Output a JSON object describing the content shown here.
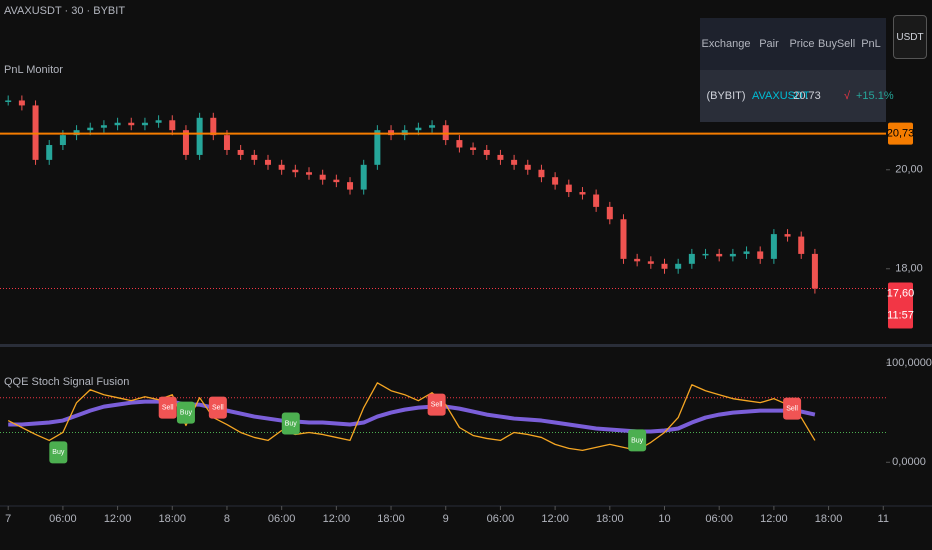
{
  "header": {
    "symbol": "AVAXUSDT · 30 · BYBIT",
    "indicator": "PnL Monitor",
    "currency": "USDT"
  },
  "table": {
    "columns": [
      "Exchange",
      "Pair",
      "Price",
      "Buy",
      "Sell",
      "PnL"
    ],
    "row": {
      "exchange": "(BYBIT)",
      "pair": "AVAXUSDT",
      "price": "20.73",
      "sell": "√",
      "pnl": "+15.1%"
    }
  },
  "chart_data": [
    {
      "type": "candlestick",
      "x": [
        0,
        1.5,
        3,
        4.5,
        6,
        7.5,
        9,
        10.5,
        12,
        13.5,
        15,
        16.5,
        18,
        19.5,
        21,
        22.5,
        24,
        25.5,
        27,
        28.5,
        30,
        31.5,
        33,
        34.5,
        36,
        37.5,
        39,
        40.5,
        42,
        43.5,
        45,
        46.5,
        48,
        49.5,
        51,
        52.5,
        54,
        55.5,
        57,
        58.5,
        60,
        61.5,
        63,
        64.5,
        66,
        67.5,
        69,
        70.5,
        72,
        73.5,
        75,
        76.5,
        78,
        79.5,
        81,
        82.5,
        84,
        85.5,
        87,
        88.5
      ],
      "values": [
        21.4,
        21.3,
        20.2,
        20.5,
        20.7,
        20.8,
        20.85,
        20.9,
        20.95,
        20.9,
        20.95,
        21.0,
        20.8,
        20.3,
        21.05,
        20.7,
        20.4,
        20.3,
        20.2,
        20.1,
        20.0,
        19.95,
        19.9,
        19.8,
        19.75,
        19.6,
        20.1,
        20.8,
        20.7,
        20.8,
        20.85,
        20.9,
        20.6,
        20.45,
        20.4,
        20.3,
        20.2,
        20.1,
        20.0,
        19.85,
        19.7,
        19.55,
        19.5,
        19.25,
        19.0,
        18.2,
        18.15,
        18.1,
        18.0,
        18.1,
        18.3,
        18.3,
        18.25,
        18.3,
        18.35,
        18.2,
        18.7,
        18.65,
        18.3,
        17.6
      ],
      "up_color": "#26a69a",
      "down_color": "#ef5350",
      "xlim": [
        -0.9,
        96.3
      ],
      "ylim": [
        16.5,
        23.43
      ],
      "yticks": [
        {
          "value": 20,
          "label": "20,00"
        },
        {
          "value": 18,
          "label": "18,00"
        }
      ],
      "price_line": {
        "value": 20.73,
        "label": "20,73",
        "color": "#f57c00"
      },
      "last_price": {
        "value": 17.6,
        "label": "17,60",
        "countdown": "11:57",
        "color": "#f23645"
      }
    },
    {
      "type": "line",
      "title": "QQE Stoch Signal Fusion",
      "x": [
        0,
        1.5,
        3,
        4.5,
        6,
        7.5,
        9,
        10.5,
        12,
        13.5,
        15,
        16.5,
        18,
        19.5,
        21,
        22.5,
        24,
        25.5,
        27,
        28.5,
        30,
        31.5,
        33,
        34.5,
        36,
        37.5,
        39,
        40.5,
        42,
        43.5,
        45,
        46.5,
        48,
        49.5,
        51,
        52.5,
        54,
        55.5,
        57,
        58.5,
        60,
        61.5,
        63,
        64.5,
        66,
        67.5,
        69,
        70.5,
        72,
        73.5,
        75,
        76.5,
        78,
        79.5,
        81,
        82.5,
        84,
        85.5,
        87,
        88.5
      ],
      "series": [
        {
          "color": "#7b5fd9",
          "width": 4,
          "values": [
            38,
            38,
            39,
            40,
            42,
            47,
            52,
            56,
            58,
            60,
            61,
            61,
            61,
            58,
            58,
            55,
            52,
            49,
            46,
            44,
            42,
            41,
            40,
            40,
            39,
            38,
            40,
            46,
            50,
            53,
            55,
            56,
            56,
            54,
            51,
            48,
            46,
            44,
            43,
            42,
            40,
            38,
            36,
            34,
            33,
            32,
            31,
            31,
            32,
            34,
            40,
            45,
            48,
            50,
            51,
            52,
            52,
            52,
            51,
            48
          ]
        },
        {
          "color": "#f5a623",
          "width": 1.3,
          "values": [
            42,
            35,
            28,
            22,
            30,
            60,
            73,
            68,
            65,
            62,
            66,
            63,
            68,
            37,
            65,
            45,
            38,
            30,
            25,
            22,
            32,
            28,
            30,
            28,
            25,
            22,
            55,
            80,
            72,
            68,
            62,
            70,
            58,
            35,
            27,
            24,
            22,
            30,
            28,
            25,
            18,
            14,
            12,
            15,
            18,
            15,
            12,
            20,
            30,
            45,
            78,
            72,
            68,
            64,
            62,
            60,
            64,
            58,
            45,
            22
          ]
        }
      ],
      "levels": [
        {
          "value": 65,
          "color": "#f23645"
        },
        {
          "value": 30,
          "color": "#4caf50"
        }
      ],
      "signals": [
        {
          "label": "Buy",
          "x": 5.5,
          "value": 10,
          "color": "#4caf50"
        },
        {
          "label": "Sell",
          "x": 17.5,
          "value": 55,
          "color": "#f05454"
        },
        {
          "label": "Buy",
          "x": 19.5,
          "value": 50,
          "color": "#4caf50"
        },
        {
          "label": "Sell",
          "x": 23,
          "value": 55,
          "color": "#f05454"
        },
        {
          "label": "Buy",
          "x": 31,
          "value": 39,
          "color": "#4caf50"
        },
        {
          "label": "Sell",
          "x": 47,
          "value": 58,
          "color": "#f05454"
        },
        {
          "label": "Buy",
          "x": 69,
          "value": 22,
          "color": "#4caf50"
        },
        {
          "label": "Sell",
          "x": 86,
          "value": 54,
          "color": "#f05454"
        }
      ],
      "xlim": [
        -0.9,
        96.3
      ],
      "ylim": [
        -43,
        113
      ],
      "yticks": [
        {
          "value": 100,
          "label": "100,0000"
        },
        {
          "value": 0,
          "label": "0,0000"
        }
      ],
      "xticks": [
        {
          "value": 0,
          "label": "7"
        },
        {
          "value": 6,
          "label": "06:00"
        },
        {
          "value": 12,
          "label": "12:00"
        },
        {
          "value": 18,
          "label": "18:00"
        },
        {
          "value": 24,
          "label": "8"
        },
        {
          "value": 30,
          "label": "06:00"
        },
        {
          "value": 36,
          "label": "12:00"
        },
        {
          "value": 42,
          "label": "18:00"
        },
        {
          "value": 48,
          "label": "9"
        },
        {
          "value": 54,
          "label": "06:00"
        },
        {
          "value": 60,
          "label": "12:00"
        },
        {
          "value": 66,
          "label": "18:00"
        },
        {
          "value": 72,
          "label": "10"
        },
        {
          "value": 78,
          "label": "06:00"
        },
        {
          "value": 84,
          "label": "12:00"
        },
        {
          "value": 90,
          "label": "18:00"
        },
        {
          "value": 96,
          "label": "11"
        }
      ]
    }
  ]
}
